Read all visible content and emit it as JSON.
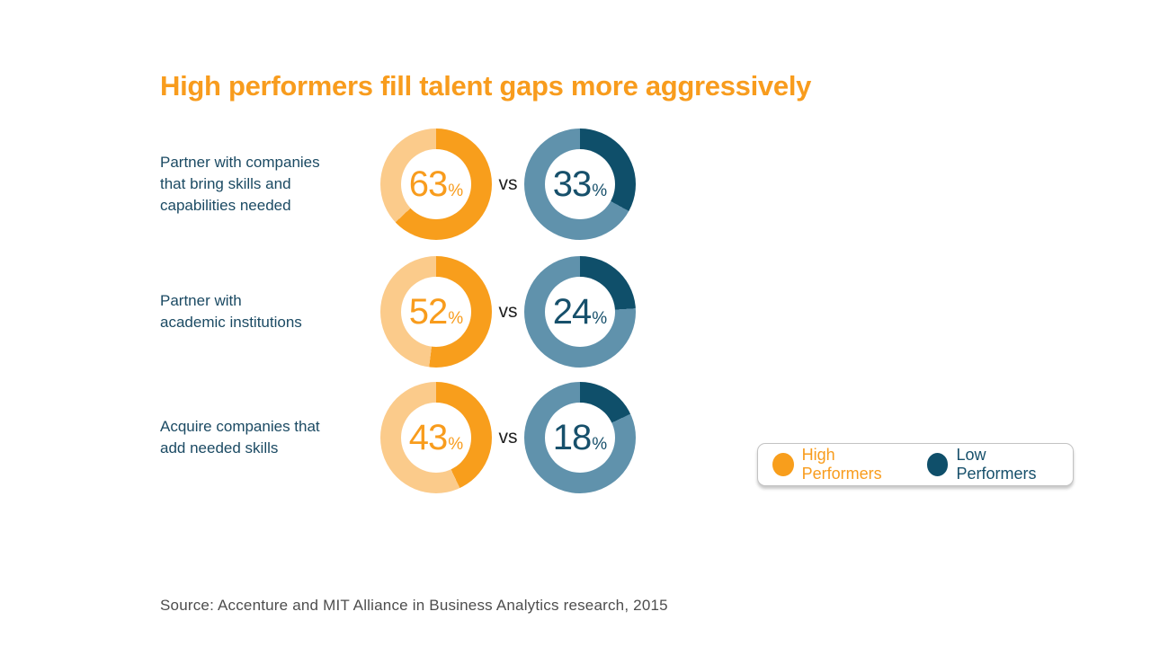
{
  "title": "High performers fill talent gaps more aggressively",
  "labels": {
    "vs": "vs",
    "percent_sign": "%"
  },
  "legend": {
    "high": "High Performers",
    "low": "Low Performers"
  },
  "source": "Source: Accenture and MIT Alliance in Business Analytics research, 2015",
  "colors": {
    "high": {
      "fill": "#F89E1C",
      "rest": "#FBCB8B"
    },
    "low": {
      "fill": "#0F4F6A",
      "rest": "#6092AC"
    },
    "title": "#F89C1D",
    "label_text": "#1B4A63",
    "source_text": "#4D4D4D"
  },
  "rows": [
    {
      "label_lines": [
        "Partner with companies",
        "that bring skills and",
        "capabilities needed"
      ],
      "high_value": 63,
      "low_value": 33
    },
    {
      "label_lines": [
        "Partner with",
        "academic institutions"
      ],
      "high_value": 52,
      "low_value": 24
    },
    {
      "label_lines": [
        "Acquire companies that",
        "add needed skills"
      ],
      "high_value": 43,
      "low_value": 18
    }
  ],
  "chart_data": {
    "type": "pie",
    "subtype": "paired-donut-comparison",
    "title": "High performers fill talent gaps more aggressively",
    "categories": [
      "Partner with companies that bring skills and capabilities needed",
      "Partner with academic institutions",
      "Acquire companies that add needed skills"
    ],
    "series": [
      {
        "name": "High Performers",
        "values": [
          63,
          52,
          43
        ],
        "color": "#F89E1C",
        "remainder_color": "#FBCB8B"
      },
      {
        "name": "Low Performers",
        "values": [
          33,
          24,
          18
        ],
        "color": "#0F4F6A",
        "remainder_color": "#6092AC"
      }
    ],
    "unit": "%",
    "donut_start_angle_deg": 0,
    "donut_direction": "clockwise",
    "legend_position": "bottom-right",
    "source": "Source: Accenture and MIT Alliance in Business Analytics research, 2015"
  }
}
